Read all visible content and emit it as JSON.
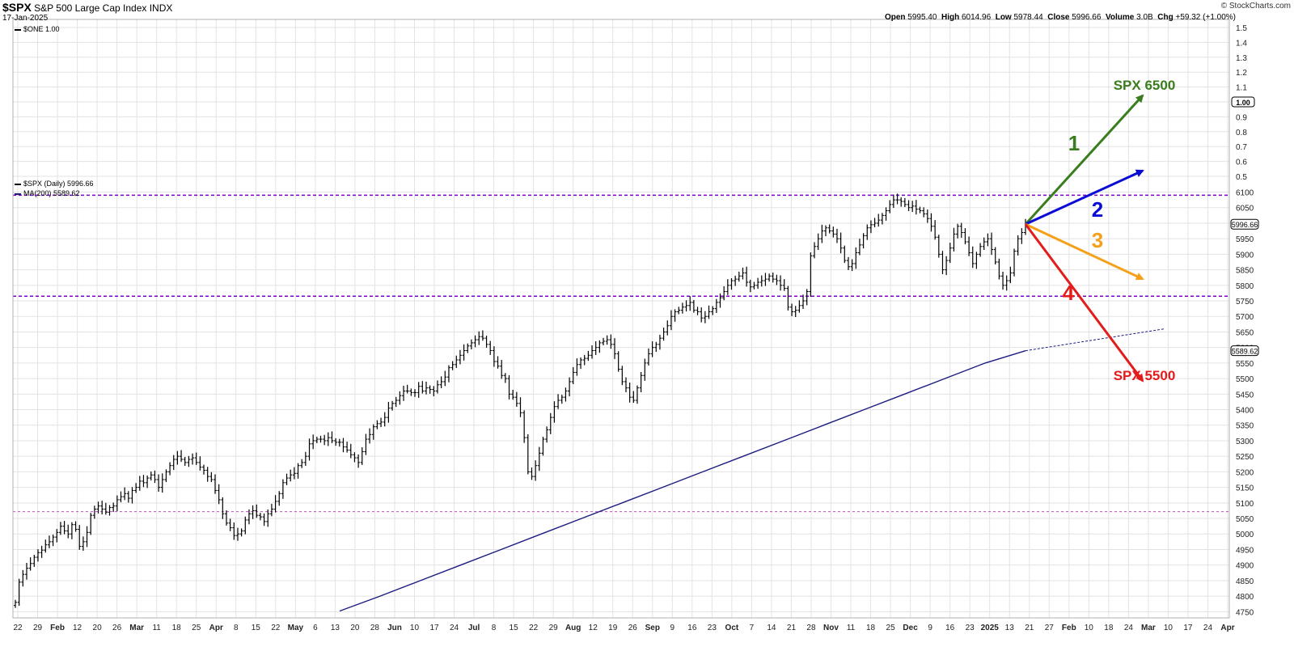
{
  "header": {
    "symbol": "$SPX",
    "name": "S&P 500 Large Cap Index",
    "exchange": "INDX",
    "date": "17-Jan-2025",
    "ohlc": [
      {
        "k": "Open",
        "v": "5995.40"
      },
      {
        "k": "High",
        "v": "6014.96"
      },
      {
        "k": "Low",
        "v": "5978.44"
      },
      {
        "k": "Close",
        "v": "5996.66"
      },
      {
        "k": "Volume",
        "v": "3.0B"
      },
      {
        "k": "Chg",
        "v": "+59.32 (+1.00%)"
      }
    ],
    "brand": "© StockCharts.com"
  },
  "legend": {
    "one": "$ONE 1.00",
    "spx": "$SPX (Daily) 5996.66",
    "ma": "MA(200) 5589.62"
  },
  "colors": {
    "price": "#000000",
    "ma": "#1c1c80",
    "level": "#7b00c8",
    "green": "#3a7d1e",
    "blue": "#0b0bd6",
    "orange": "#f5a01a",
    "red": "#e31b1b",
    "grid": "#e3e3e3"
  },
  "chart_data": {
    "type": "line",
    "title": "$SPX S&P 500 Large Cap Index INDX",
    "x_ticks": [
      "22",
      "29",
      "Feb",
      "12",
      "20",
      "26",
      "Mar",
      "11",
      "18",
      "25",
      "Apr",
      "8",
      "15",
      "22",
      "May",
      "6",
      "13",
      "20",
      "28",
      "Jun",
      "10",
      "17",
      "24",
      "Jul",
      "8",
      "15",
      "22",
      "29",
      "Aug",
      "12",
      "19",
      "26",
      "Sep",
      "9",
      "16",
      "23",
      "Oct",
      "7",
      "14",
      "21",
      "28",
      "Nov",
      "11",
      "18",
      "25",
      "Dec",
      "9",
      "16",
      "23",
      "2025",
      "13",
      "21",
      "27",
      "Feb",
      "10",
      "18",
      "24",
      "Mar",
      "10",
      "17",
      "24",
      "Apr"
    ],
    "y_ticks_upper": [
      "1.5",
      "1.4",
      "1.3",
      "1.2",
      "1.1",
      "1.00",
      "0.9",
      "0.8",
      "0.7",
      "0.6",
      "0.5"
    ],
    "y_ticks_price": [
      "6100",
      "6050",
      "6000",
      "5950",
      "5900",
      "5850",
      "5800",
      "5750",
      "5700",
      "5650",
      "5600",
      "5550",
      "5500",
      "5450",
      "5400",
      "5350",
      "5300",
      "5250",
      "5200",
      "5150",
      "5100",
      "5050",
      "5000",
      "4950",
      "4900",
      "4850",
      "4800",
      "4750"
    ],
    "ylim_price": [
      4730,
      6130
    ],
    "series": [
      {
        "name": "$SPX (Daily)",
        "last": 5996.66,
        "close": [
          4780,
          4845,
          4870,
          4890,
          4905,
          4925,
          4940,
          4948,
          4965,
          4975,
          4990,
          5005,
          5025,
          5010,
          5000,
          5030,
          5015,
          4960,
          4975,
          5005,
          5060,
          5080,
          5090,
          5080,
          5070,
          5085,
          5090,
          5110,
          5120,
          5130,
          5115,
          5140,
          5150,
          5170,
          5165,
          5180,
          5190,
          5175,
          5150,
          5175,
          5200,
          5220,
          5240,
          5250,
          5240,
          5230,
          5240,
          5245,
          5230,
          5215,
          5205,
          5185,
          5175,
          5140,
          5110,
          5065,
          5035,
          5020,
          4995,
          5000,
          5010,
          5045,
          5065,
          5075,
          5060,
          5055,
          5040,
          5065,
          5080,
          5105,
          5130,
          5165,
          5180,
          5190,
          5195,
          5220,
          5230,
          5250,
          5290,
          5300,
          5305,
          5305,
          5300,
          5310,
          5300,
          5295,
          5295,
          5280,
          5270,
          5255,
          5245,
          5230,
          5265,
          5305,
          5320,
          5345,
          5355,
          5360,
          5375,
          5405,
          5420,
          5430,
          5445,
          5460,
          5460,
          5455,
          5455,
          5475,
          5460,
          5470,
          5465,
          5460,
          5480,
          5490,
          5505,
          5535,
          5545,
          5560,
          5575,
          5590,
          5605,
          5615,
          5625,
          5635,
          5630,
          5610,
          5590,
          5555,
          5540,
          5510,
          5500,
          5450,
          5440,
          5420,
          5390,
          5310,
          5200,
          5185,
          5220,
          5260,
          5305,
          5335,
          5375,
          5410,
          5430,
          5440,
          5460,
          5490,
          5520,
          5545,
          5560,
          5565,
          5575,
          5590,
          5600,
          5615,
          5620,
          5625,
          5610,
          5580,
          5530,
          5490,
          5470,
          5440,
          5430,
          5470,
          5510,
          5550,
          5580,
          5600,
          5610,
          5630,
          5650,
          5670,
          5700,
          5715,
          5720,
          5730,
          5735,
          5745,
          5720,
          5715,
          5695,
          5700,
          5715,
          5725,
          5745,
          5760,
          5780,
          5800,
          5815,
          5820,
          5830,
          5840,
          5810,
          5795,
          5800,
          5810,
          5815,
          5820,
          5830,
          5820,
          5815,
          5800,
          5790,
          5730,
          5715,
          5720,
          5735,
          5750,
          5780,
          5895,
          5925,
          5950,
          5975,
          5985,
          5975,
          5965,
          5950,
          5920,
          5880,
          5860,
          5870,
          5905,
          5930,
          5960,
          5985,
          5995,
          6000,
          6010,
          6025,
          6040,
          6060,
          6075,
          6075,
          6070,
          6060,
          6050,
          6055,
          6045,
          6040,
          6030,
          6015,
          5990,
          5955,
          5900,
          5850,
          5880,
          5920,
          5965,
          5990,
          5970,
          5940,
          5905,
          5870,
          5900,
          5925,
          5940,
          5950,
          5915,
          5875,
          5830,
          5800,
          5815,
          5840,
          5910,
          5950,
          5970,
          5996.66
        ]
      },
      {
        "name": "MA(200)",
        "last": 5589.62,
        "values": [
          4752,
          4800,
          4850,
          4900,
          4950,
          5000,
          5050,
          5100,
          5150,
          5200,
          5250,
          5300,
          5350,
          5400,
          5450,
          5500,
          5550,
          5589.62
        ]
      },
      {
        "name": "$ONE",
        "last": 1.0
      }
    ],
    "horizontal_levels": [
      6090,
      5765,
      5072
    ],
    "scenarios": [
      {
        "label": "1",
        "target": "SPX 6500"
      },
      {
        "label": "2"
      },
      {
        "label": "3"
      },
      {
        "label": "4",
        "target": "SPX 5500"
      }
    ],
    "grid": true
  }
}
